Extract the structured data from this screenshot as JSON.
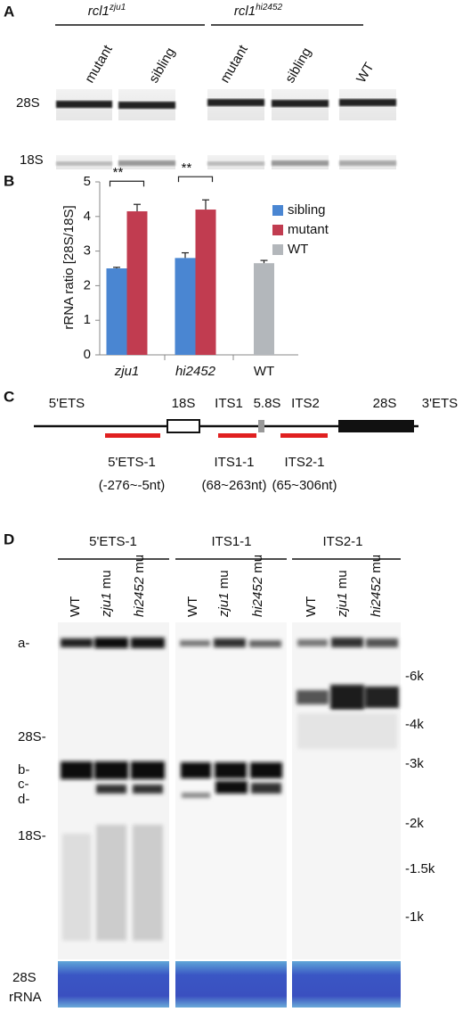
{
  "panel_a": {
    "letter": "A",
    "groups": [
      {
        "base": "rcl1",
        "sup": "zju1"
      },
      {
        "base": "rcl1",
        "sup": "hi2452"
      }
    ],
    "lanes": [
      "mutant",
      "sibling",
      "mutant",
      "sibling",
      "WT"
    ],
    "rows": [
      "28S",
      "18S"
    ]
  },
  "panel_b": {
    "letter": "B"
  },
  "chart_data": {
    "type": "bar",
    "ylabel": "rRNA ratio [28S/18S]",
    "categories": [
      "zju1",
      "hi2452",
      "WT"
    ],
    "series": [
      {
        "name": "sibling",
        "color": "#4a86d2",
        "values": [
          2.5,
          2.8,
          null
        ],
        "errors": [
          0.03,
          0.15,
          null
        ]
      },
      {
        "name": "mutant",
        "color": "#c13c50",
        "values": [
          4.15,
          4.2,
          null
        ],
        "errors": [
          0.2,
          0.28,
          null
        ]
      },
      {
        "name": "WT",
        "color": "#b3b7bb",
        "values": [
          null,
          null,
          2.65
        ],
        "errors": [
          null,
          null,
          0.08
        ]
      }
    ],
    "ylim": [
      0,
      5
    ],
    "yticks": [
      0,
      1,
      2,
      3,
      4,
      5
    ],
    "annotations": [
      {
        "text": "**",
        "category": 0
      },
      {
        "text": "**",
        "category": 1
      }
    ]
  },
  "panel_c": {
    "letter": "C",
    "regions": [
      "5'ETS",
      "18S",
      "ITS1",
      "5.8S",
      "ITS2",
      "28S",
      "3'ETS"
    ],
    "probes": [
      {
        "name": "5'ETS-1",
        "range": "(-276~-5nt)"
      },
      {
        "name": "ITS1-1",
        "range": "(68~263nt)"
      },
      {
        "name": "ITS2-1",
        "range": "(65~306nt)"
      }
    ]
  },
  "panel_d": {
    "letter": "D",
    "probes": [
      "5'ETS-1",
      "ITS1-1",
      "ITS2-1"
    ],
    "lanes": [
      {
        "plain": "WT"
      },
      {
        "italic": "zju1",
        "plain": " mu"
      },
      {
        "italic": "hi2452",
        "plain": " mu"
      }
    ],
    "left_labels": [
      "a-",
      "28S-",
      "b-",
      "c-",
      "d-",
      "18S-"
    ],
    "right_labels": [
      "-6k",
      "-4k",
      "-3k",
      "-2k",
      "-1.5k",
      "-1k"
    ],
    "bottom_label": [
      "28S",
      "rRNA"
    ]
  }
}
